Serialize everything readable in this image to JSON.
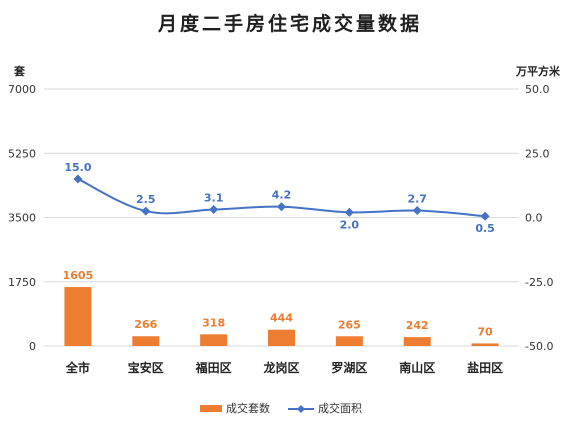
{
  "colors": {
    "bar": "#ED7D31",
    "line": "#4472C4",
    "grid": "#D9D9D9"
  },
  "chart_data": {
    "type": "bar",
    "title": "月度二手房住宅成交量数据",
    "categories": [
      "全市",
      "宝安区",
      "福田区",
      "龙岗区",
      "罗湖区",
      "南山区",
      "盐田区"
    ],
    "y_left": {
      "label": "套",
      "ylim": [
        0,
        7000
      ],
      "ticks": [
        "0",
        "1750",
        "3500",
        "5250",
        "7000"
      ],
      "tick_values": [
        0,
        1750,
        3500,
        5250,
        7000
      ]
    },
    "y_right": {
      "label": "万平方米",
      "ylim": [
        -50,
        50
      ],
      "ticks": [
        "-50.0",
        "-25.0",
        "0.0",
        "25.0",
        "50.0"
      ],
      "tick_values": [
        -50,
        -25,
        0,
        25,
        50
      ]
    },
    "grid": true,
    "legend_position": "bottom",
    "series": [
      {
        "name": "成交套数",
        "type": "bar",
        "axis": "left",
        "values": [
          1605,
          266,
          318,
          444,
          265,
          242,
          70
        ],
        "labels": [
          "1605",
          "266",
          "318",
          "444",
          "265",
          "242",
          "70"
        ]
      },
      {
        "name": "成交面积",
        "type": "line",
        "axis": "right",
        "values": [
          15.0,
          2.5,
          3.1,
          4.2,
          2.0,
          2.7,
          0.5
        ],
        "labels": [
          "15.0",
          "2.5",
          "3.1",
          "4.2",
          "2.0",
          "2.7",
          "0.5"
        ]
      }
    ]
  }
}
